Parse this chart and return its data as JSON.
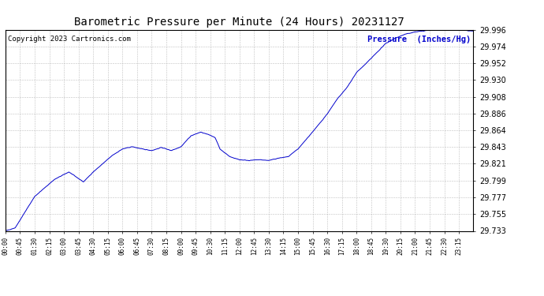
{
  "title": "Barometric Pressure per Minute (24 Hours) 20231127",
  "copyright": "Copyright 2023 Cartronics.com",
  "legend_label": "Pressure  (Inches/Hg)",
  "line_color": "#0000cc",
  "background_color": "#ffffff",
  "grid_color": "#b0b0b0",
  "yticks": [
    29.733,
    29.755,
    29.777,
    29.799,
    29.821,
    29.843,
    29.864,
    29.886,
    29.908,
    29.93,
    29.952,
    29.974,
    29.996
  ],
  "ymin": 29.733,
  "ymax": 29.996,
  "xtick_labels": [
    "00:00",
    "00:45",
    "01:30",
    "02:15",
    "03:00",
    "03:45",
    "04:30",
    "05:15",
    "06:00",
    "06:45",
    "07:30",
    "08:15",
    "09:00",
    "09:45",
    "10:30",
    "11:15",
    "12:00",
    "12:45",
    "13:30",
    "14:15",
    "15:00",
    "15:45",
    "16:30",
    "17:15",
    "18:00",
    "18:45",
    "19:30",
    "20:15",
    "21:00",
    "21:45",
    "22:30",
    "23:15"
  ],
  "title_fontsize": 10,
  "copyright_fontsize": 6.5,
  "legend_fontsize": 7.5,
  "ytick_fontsize": 7,
  "xtick_fontsize": 5.5,
  "anchors_t": [
    0,
    30,
    90,
    150,
    195,
    240,
    270,
    330,
    360,
    390,
    420,
    450,
    480,
    510,
    540,
    570,
    600,
    630,
    645,
    660,
    690,
    720,
    750,
    780,
    810,
    840,
    870,
    900,
    930,
    960,
    990,
    1020,
    1050,
    1080,
    1110,
    1140,
    1170,
    1200,
    1230,
    1260,
    1300,
    1350,
    1380,
    1410,
    1439
  ],
  "anchors_p": [
    29.733,
    29.737,
    29.778,
    29.8,
    29.81,
    29.797,
    29.81,
    29.832,
    29.84,
    29.843,
    29.84,
    29.838,
    29.842,
    29.838,
    29.843,
    29.857,
    29.862,
    29.858,
    29.855,
    29.84,
    29.83,
    29.826,
    29.825,
    29.826,
    29.825,
    29.828,
    29.83,
    29.84,
    29.855,
    29.87,
    29.886,
    29.905,
    29.92,
    29.94,
    29.952,
    29.965,
    29.978,
    29.985,
    29.99,
    29.993,
    29.995,
    29.996,
    29.996,
    29.995,
    29.994
  ]
}
